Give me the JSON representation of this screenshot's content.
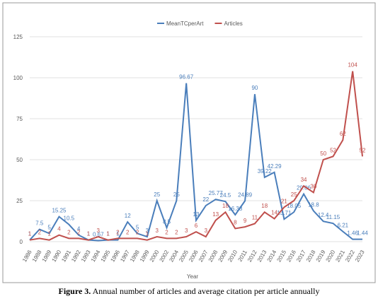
{
  "chart_data": {
    "type": "line",
    "categories": [
      "1986",
      "1988",
      "1989",
      "1990",
      "1991",
      "1992",
      "1993",
      "1994",
      "1995",
      "1996",
      "1997",
      "1998",
      "1999",
      "2000",
      "2002",
      "2004",
      "2005",
      "2006",
      "2007",
      "2008",
      "2009",
      "2010",
      "2011",
      "2012",
      "2013",
      "2014",
      "2015",
      "2016",
      "2017",
      "2018",
      "2019",
      "2020",
      "2021",
      "2022",
      "2023"
    ],
    "x_label": "Year",
    "series": [
      {
        "name": "MeanTCperArt",
        "color": "#4a7ebb",
        "values": [
          1,
          7.5,
          5,
          15.25,
          10.5,
          4,
          1,
          0.67,
          1,
          1,
          12,
          5,
          3,
          25,
          8.5,
          25,
          96.67,
          13,
          22,
          25.77,
          24.5,
          16.38,
          24.89,
          90,
          39.22,
          42.29,
          13.71,
          18.05,
          29.06,
          18.8,
          12.4,
          11.15,
          6.21,
          1.46,
          1.44
        ]
      },
      {
        "name": "Articles",
        "color": "#c0504d",
        "values": [
          1,
          2,
          1,
          4,
          2,
          2,
          1,
          3,
          1,
          2,
          2,
          2,
          1,
          3,
          2,
          2,
          3,
          6,
          3,
          13,
          18,
          8,
          9,
          11,
          18,
          14,
          21,
          25,
          34,
          30,
          50,
          52,
          62,
          104,
          52
        ]
      }
    ],
    "ylim": [
      0,
      125
    ],
    "yticks": [
      0,
      25,
      50,
      75,
      100,
      125
    ],
    "grid": true,
    "legend": "top"
  },
  "caption": {
    "label": "Figure 3.",
    "text": " Annual number of articles and average citation per article annually"
  }
}
